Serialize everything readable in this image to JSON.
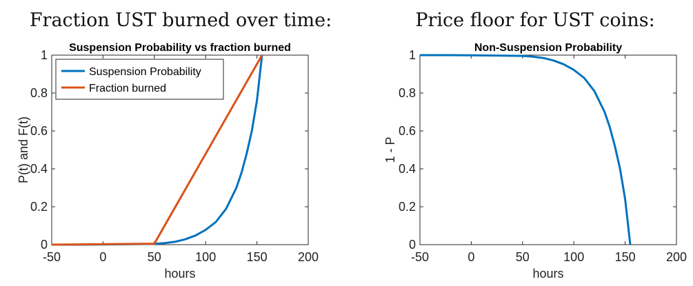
{
  "captions": {
    "left": "Fraction UST burned over time:",
    "right": "Price floor for UST coins:"
  },
  "colors": {
    "blue": "#0072BD",
    "orange": "#D95319",
    "axis": "#262626"
  },
  "chart_data": [
    {
      "type": "line",
      "title": "Suspension Probability vs fraction burned",
      "xlabel": "hours",
      "ylabel": "P(t) and F(t)",
      "xlim": [
        -50,
        200
      ],
      "ylim": [
        0,
        1
      ],
      "xticks": [
        -50,
        0,
        50,
        100,
        150,
        200
      ],
      "yticks": [
        0,
        0.2,
        0.4,
        0.6,
        0.8,
        1
      ],
      "xtick_labels": [
        "-50",
        "0",
        "50",
        "100",
        "150",
        "200"
      ],
      "ytick_labels": [
        "0",
        "0.2",
        "0.4",
        "0.6",
        "0.8",
        "1"
      ],
      "grid": false,
      "legend": "top-left",
      "series": [
        {
          "name": "Suspension Probability",
          "color": "#0072BD",
          "x": [
            -50,
            -25,
            0,
            25,
            50,
            60,
            70,
            80,
            90,
            100,
            110,
            120,
            130,
            135,
            140,
            145,
            150,
            155
          ],
          "y": [
            0,
            0,
            0.001,
            0.002,
            0.004,
            0.008,
            0.015,
            0.028,
            0.048,
            0.078,
            0.12,
            0.19,
            0.3,
            0.38,
            0.48,
            0.6,
            0.76,
            1
          ]
        },
        {
          "name": "Fraction burned",
          "color": "#D95319",
          "x": [
            -50,
            50,
            155
          ],
          "y": [
            0,
            0.005,
            1
          ]
        }
      ]
    },
    {
      "type": "line",
      "title": "Non-Suspension Probability",
      "xlabel": "hours",
      "ylabel": "1 - P",
      "xlim": [
        -50,
        200
      ],
      "ylim": [
        0,
        1
      ],
      "xticks": [
        -50,
        0,
        50,
        100,
        150,
        200
      ],
      "yticks": [
        0,
        0.2,
        0.4,
        0.6,
        0.8,
        1
      ],
      "xtick_labels": [
        "-50",
        "0",
        "50",
        "100",
        "150",
        "200"
      ],
      "ytick_labels": [
        "0",
        "0.2",
        "0.4",
        "0.6",
        "0.8",
        "1"
      ],
      "grid": false,
      "series": [
        {
          "color": "#0072BD",
          "x": [
            -50,
            -25,
            0,
            25,
            50,
            60,
            70,
            80,
            90,
            100,
            110,
            120,
            130,
            135,
            140,
            145,
            150,
            155
          ],
          "y": [
            1,
            1,
            0.999,
            0.998,
            0.996,
            0.992,
            0.985,
            0.972,
            0.952,
            0.922,
            0.88,
            0.81,
            0.7,
            0.62,
            0.52,
            0.4,
            0.24,
            0
          ]
        }
      ]
    }
  ]
}
